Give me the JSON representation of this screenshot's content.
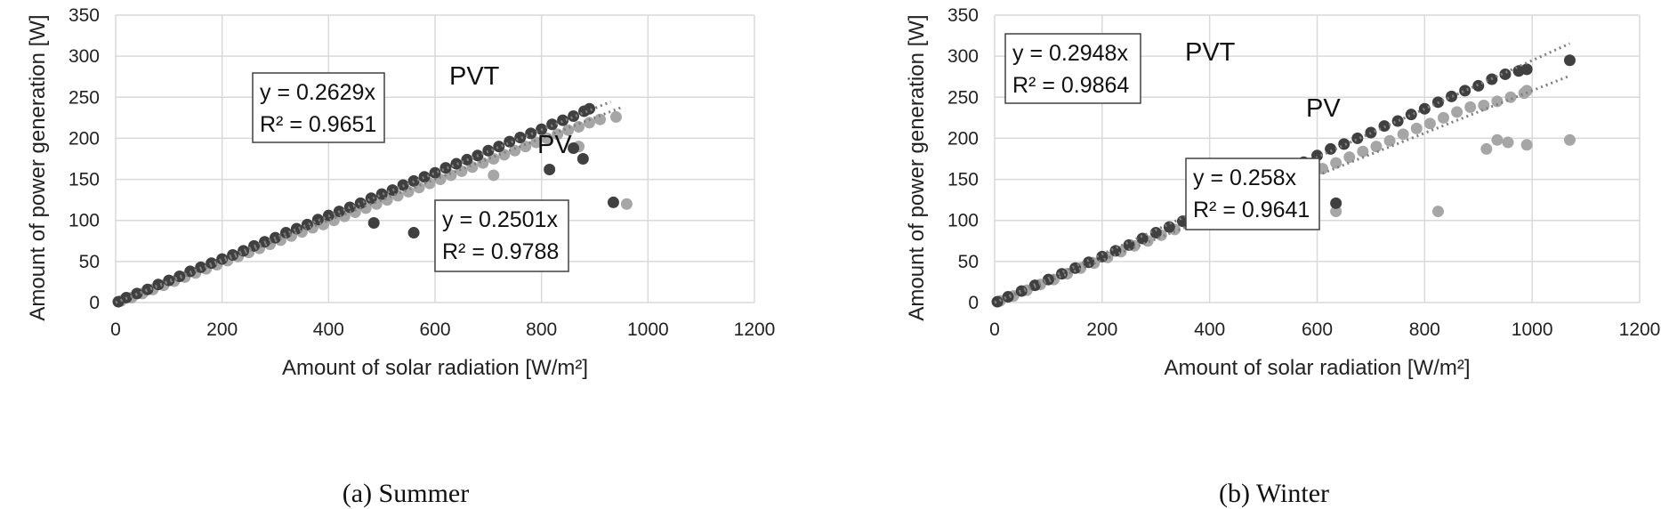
{
  "chart_data": [
    {
      "type": "scatter",
      "caption": "(a) Summer",
      "xlabel": "Amount of solar radiation [W/m²]",
      "ylabel": "Amount of power generation [W]",
      "xlim": [
        0,
        1200
      ],
      "ylim": [
        0,
        350
      ],
      "xticks": [
        0,
        200,
        400,
        600,
        800,
        1000,
        1200
      ],
      "yticks": [
        0,
        50,
        100,
        150,
        200,
        250,
        300,
        350
      ],
      "grid": true,
      "series": [
        {
          "name": "PVT",
          "color": "#404040",
          "trendline": {
            "slope": 0.2629,
            "x_end": 930,
            "equation": "y = 0.2629x",
            "r2": "R² = 0.9651"
          },
          "x": [
            5,
            20,
            40,
            60,
            80,
            100,
            120,
            140,
            160,
            180,
            200,
            220,
            240,
            260,
            280,
            300,
            320,
            340,
            360,
            380,
            400,
            420,
            440,
            460,
            480,
            500,
            520,
            540,
            560,
            580,
            600,
            620,
            640,
            660,
            680,
            700,
            720,
            740,
            760,
            780,
            800,
            820,
            840,
            860,
            880,
            890,
            485,
            560,
            815,
            860,
            878,
            935
          ],
          "y": [
            1,
            6,
            11,
            16,
            22,
            27,
            32,
            38,
            43,
            48,
            53,
            58,
            63,
            69,
            74,
            79,
            85,
            90,
            95,
            101,
            106,
            111,
            116,
            121,
            127,
            132,
            137,
            143,
            148,
            153,
            158,
            164,
            169,
            174,
            179,
            185,
            190,
            196,
            201,
            206,
            211,
            217,
            222,
            227,
            233,
            236,
            97,
            85,
            162,
            188,
            175,
            122
          ]
        },
        {
          "name": "PV",
          "color": "#a6a6a6",
          "trendline": {
            "slope": 0.2501,
            "x_end": 950,
            "equation": "y = 0.2501x",
            "r2": "R² = 0.9788"
          },
          "x": [
            10,
            30,
            50,
            70,
            90,
            110,
            130,
            150,
            170,
            190,
            210,
            230,
            250,
            270,
            290,
            310,
            330,
            350,
            370,
            390,
            410,
            430,
            450,
            470,
            490,
            510,
            530,
            550,
            570,
            590,
            610,
            630,
            650,
            670,
            690,
            710,
            730,
            750,
            770,
            790,
            810,
            830,
            850,
            870,
            890,
            910,
            940,
            660,
            710,
            750,
            790,
            870,
            960
          ],
          "y": [
            2,
            6,
            11,
            16,
            21,
            26,
            31,
            36,
            41,
            46,
            51,
            56,
            61,
            66,
            71,
            76,
            81,
            86,
            91,
            95,
            100,
            105,
            110,
            115,
            120,
            125,
            130,
            135,
            140,
            145,
            150,
            155,
            160,
            165,
            170,
            175,
            180,
            185,
            190,
            195,
            200,
            205,
            210,
            214,
            219,
            223,
            226,
            99,
            155,
            118,
            109,
            190,
            120
          ]
        }
      ]
    },
    {
      "type": "scatter",
      "caption": "(b) Winter",
      "xlabel": "Amount of solar radiation [W/m²]",
      "ylabel": "Amount of power generation [W]",
      "xlim": [
        0,
        1200
      ],
      "ylim": [
        0,
        350
      ],
      "xticks": [
        0,
        200,
        400,
        600,
        800,
        1000,
        1200
      ],
      "yticks": [
        0,
        50,
        100,
        150,
        200,
        250,
        300,
        350
      ],
      "grid": true,
      "series": [
        {
          "name": "PVT",
          "color": "#404040",
          "trendline": {
            "slope": 0.2948,
            "x_end": 1070,
            "equation": "y = 0.2948x",
            "r2": "R² = 0.9864"
          },
          "x": [
            5,
            25,
            50,
            75,
            100,
            125,
            150,
            175,
            200,
            225,
            250,
            275,
            300,
            325,
            350,
            375,
            400,
            425,
            450,
            475,
            500,
            525,
            550,
            575,
            600,
            625,
            650,
            675,
            700,
            725,
            750,
            775,
            800,
            825,
            850,
            875,
            900,
            925,
            950,
            975,
            990,
            1070,
            635
          ],
          "y": [
            1,
            7,
            14,
            21,
            28,
            35,
            42,
            49,
            56,
            63,
            70,
            78,
            85,
            92,
            99,
            110,
            117,
            128,
            135,
            142,
            150,
            157,
            163,
            171,
            179,
            187,
            193,
            200,
            207,
            215,
            221,
            229,
            236,
            244,
            251,
            258,
            264,
            272,
            278,
            282,
            284,
            295,
            121
          ]
        },
        {
          "name": "PV",
          "color": "#a6a6a6",
          "trendline": {
            "slope": 0.258,
            "x_end": 1070,
            "equation": "y = 0.258x",
            "r2": "R² = 0.9641"
          },
          "x": [
            10,
            35,
            60,
            85,
            110,
            135,
            160,
            185,
            210,
            235,
            260,
            285,
            310,
            335,
            360,
            385,
            410,
            435,
            460,
            485,
            510,
            535,
            560,
            585,
            610,
            635,
            660,
            685,
            710,
            735,
            760,
            785,
            810,
            835,
            860,
            885,
            910,
            935,
            960,
            985,
            990,
            635,
            825,
            915,
            935,
            955,
            990,
            1070
          ],
          "y": [
            2,
            8,
            15,
            22,
            28,
            35,
            42,
            48,
            55,
            62,
            69,
            75,
            82,
            89,
            96,
            102,
            110,
            116,
            123,
            130,
            136,
            144,
            150,
            157,
            163,
            170,
            177,
            184,
            190,
            197,
            205,
            212,
            218,
            225,
            232,
            238,
            240,
            245,
            250,
            255,
            258,
            111,
            111,
            187,
            198,
            195,
            192,
            198
          ]
        }
      ]
    }
  ]
}
